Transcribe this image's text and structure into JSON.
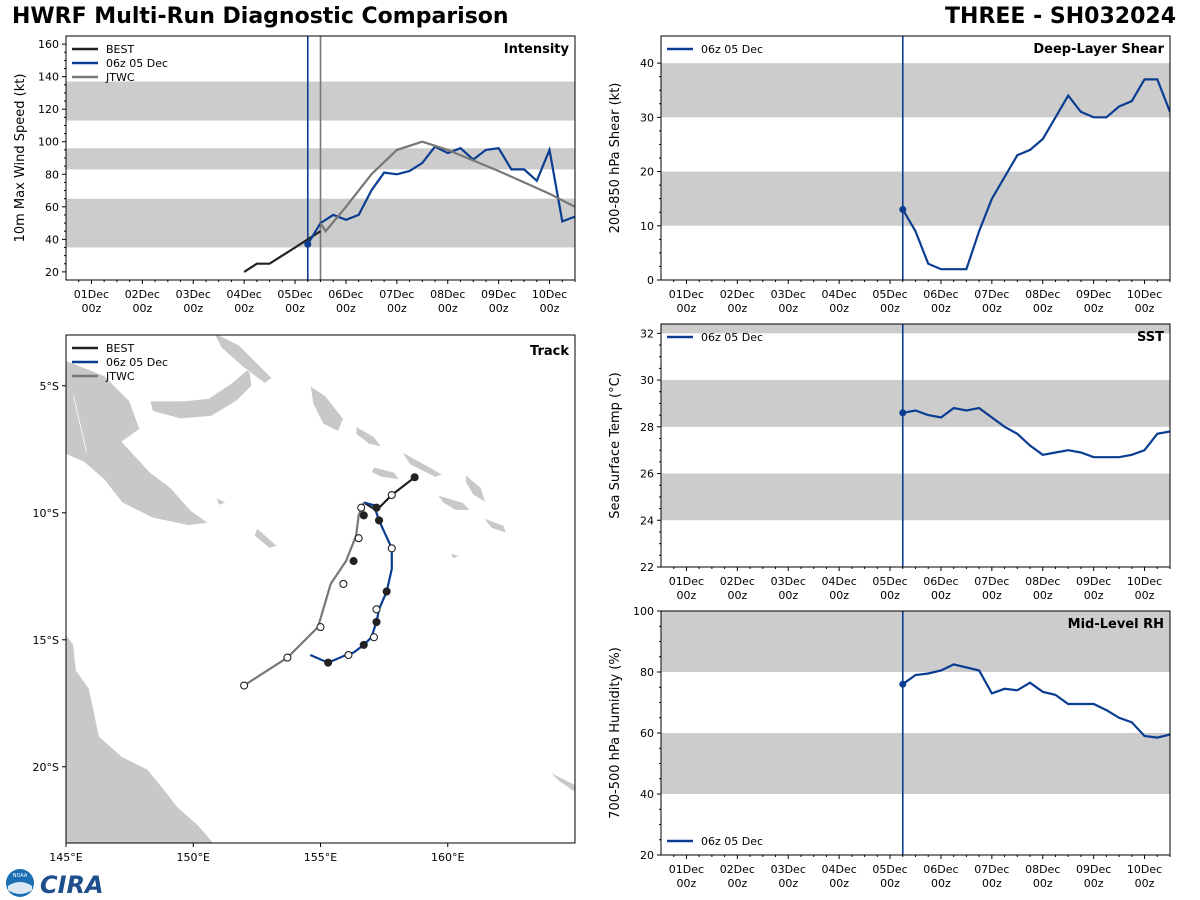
{
  "header": {
    "title_left": "HWRF Multi-Run Diagnostic Comparison",
    "title_right": "THREE - SH032024"
  },
  "colors": {
    "best": "#222222",
    "hwrf": "#0a3d91",
    "jtwc": "#777777",
    "band": "#cccccc"
  },
  "time_ticks": [
    "01Dec\n00z",
    "02Dec\n00z",
    "03Dec\n00z",
    "04Dec\n00z",
    "05Dec\n00z",
    "06Dec\n00z",
    "07Dec\n00z",
    "08Dec\n00z",
    "09Dec\n00z",
    "10Dec\n00z"
  ],
  "chart_data": [
    {
      "id": "intensity",
      "type": "line",
      "title": "Intensity",
      "ylabel": "10m Max Wind Speed (kt)",
      "xlim": [
        -0.5,
        9.5
      ],
      "ylim": [
        15,
        165
      ],
      "yticks": [
        20,
        40,
        60,
        80,
        100,
        120,
        140,
        160
      ],
      "bands": [
        [
          35,
          65
        ],
        [
          83,
          96
        ],
        [
          113,
          137
        ]
      ],
      "vlines": [
        {
          "x": 4.25,
          "series": "06z 05 Dec"
        },
        {
          "x": 4.5,
          "series": "JTWC"
        }
      ],
      "legend": [
        "BEST",
        "06z 05 Dec",
        "JTWC"
      ],
      "series": [
        {
          "name": "BEST",
          "x": [
            3,
            3.25,
            3.5,
            3.75,
            4,
            4.25,
            4.5
          ],
          "y": [
            20,
            25,
            25,
            30,
            35,
            40,
            45
          ]
        },
        {
          "name": "06z 05 Dec",
          "x": [
            4.25,
            4.5,
            4.75,
            5,
            5.25,
            5.5,
            5.75,
            6,
            6.25,
            6.5,
            6.75,
            7,
            7.25,
            7.5,
            7.75,
            8,
            8.25,
            8.5,
            8.75,
            9,
            9.25,
            9.5
          ],
          "y": [
            37,
            50,
            55,
            52,
            55,
            70,
            81,
            80,
            82,
            87,
            97,
            93,
            96,
            89,
            95,
            96,
            83,
            83,
            76,
            95,
            51,
            54
          ]
        },
        {
          "name": "JTWC",
          "x": [
            4.5,
            4.6,
            5,
            5.5,
            6,
            6.5,
            7,
            8,
            9,
            9.5
          ],
          "y": [
            50,
            45,
            60,
            80,
            95,
            100,
            95,
            82,
            68,
            60
          ]
        }
      ]
    },
    {
      "id": "shear",
      "type": "line",
      "title": "Deep-Layer Shear",
      "ylabel": "200-850 hPa Shear (kt)",
      "xlim": [
        -0.5,
        9.5
      ],
      "ylim": [
        0,
        45
      ],
      "yticks": [
        0,
        10,
        20,
        30,
        40
      ],
      "bands": [
        [
          10,
          20
        ],
        [
          30,
          40
        ]
      ],
      "vlines": [
        {
          "x": 4.25,
          "series": "06z 05 Dec"
        }
      ],
      "legend": [
        "06z 05 Dec"
      ],
      "series": [
        {
          "name": "06z 05 Dec",
          "x": [
            4.25,
            4.5,
            4.75,
            5,
            5.25,
            5.5,
            5.75,
            6,
            6.25,
            6.5,
            6.75,
            7,
            7.25,
            7.5,
            7.75,
            8,
            8.25,
            8.5,
            8.75,
            9,
            9.25,
            9.5
          ],
          "y": [
            13,
            9,
            3,
            2,
            2,
            2,
            9,
            15,
            19,
            23,
            24,
            26,
            30,
            34,
            31,
            30,
            30,
            32,
            33,
            37,
            37,
            31
          ]
        }
      ]
    },
    {
      "id": "sst",
      "type": "line",
      "title": "SST",
      "ylabel": "Sea Surface Temp (°C)",
      "xlim": [
        -0.5,
        9.5
      ],
      "ylim": [
        22,
        32.4
      ],
      "yticks": [
        22,
        24,
        26,
        28,
        30,
        32
      ],
      "bands": [
        [
          24,
          26
        ],
        [
          28,
          30
        ],
        [
          32,
          33
        ]
      ],
      "vlines": [
        {
          "x": 4.25,
          "series": "06z 05 Dec"
        }
      ],
      "legend": [
        "06z 05 Dec"
      ],
      "series": [
        {
          "name": "06z 05 Dec",
          "x": [
            4.25,
            4.5,
            4.75,
            5,
            5.25,
            5.5,
            5.75,
            6,
            6.25,
            6.5,
            6.75,
            7,
            7.25,
            7.5,
            7.75,
            8,
            8.25,
            8.5,
            8.75,
            9,
            9.25,
            9.5
          ],
          "y": [
            28.6,
            28.7,
            28.5,
            28.4,
            28.8,
            28.7,
            28.8,
            28.4,
            28.0,
            27.7,
            27.2,
            26.8,
            26.9,
            27.0,
            26.9,
            26.7,
            26.7,
            26.7,
            26.8,
            27.0,
            27.7,
            27.8
          ]
        }
      ]
    },
    {
      "id": "rh",
      "type": "line",
      "title": "Mid-Level RH",
      "ylabel": "700-500 hPa Humidity (%)",
      "xlim": [
        -0.5,
        9.5
      ],
      "ylim": [
        20,
        100
      ],
      "yticks": [
        20,
        40,
        60,
        80,
        100
      ],
      "bands": [
        [
          40,
          60
        ],
        [
          80,
          100
        ]
      ],
      "vlines": [
        {
          "x": 4.25,
          "series": "06z 05 Dec"
        }
      ],
      "legend": [
        "06z 05 Dec"
      ],
      "series": [
        {
          "name": "06z 05 Dec",
          "x": [
            4.25,
            4.5,
            4.75,
            5,
            5.25,
            5.5,
            5.75,
            6,
            6.25,
            6.5,
            6.75,
            7,
            7.25,
            7.5,
            7.75,
            8,
            8.25,
            8.5,
            8.75,
            9,
            9.25,
            9.5
          ],
          "y": [
            76,
            79,
            79.5,
            80.5,
            82.5,
            81.5,
            80.5,
            73,
            74.5,
            74,
            76.5,
            73.5,
            72.5,
            69.5,
            69.5,
            69.5,
            67.5,
            65,
            63.5,
            59,
            58.5,
            59.5
          ]
        }
      ]
    },
    {
      "id": "track",
      "type": "scatter",
      "title": "Track",
      "xlim": [
        145,
        165
      ],
      "ylim": [
        -23,
        -3
      ],
      "xticks": [
        145,
        150,
        155,
        160
      ],
      "xtick_labels": [
        "145°E",
        "150°E",
        "155°E",
        "160°E"
      ],
      "yticks": [
        -5,
        -10,
        -15,
        -20
      ],
      "ytick_labels": [
        "5°S",
        "10°S",
        "15°S",
        "20°S"
      ],
      "legend": [
        "BEST",
        "06z 05 Dec",
        "JTWC"
      ],
      "series": [
        {
          "name": "BEST",
          "lon": [
            158.7,
            157.8,
            157.2,
            156.7
          ],
          "lat": [
            -8.6,
            -9.3,
            -9.9,
            -9.6
          ]
        },
        {
          "name": "06z 05 Dec",
          "lon": [
            156.7,
            157.1,
            157.3,
            157.8,
            157.8,
            157.6,
            157.3,
            157.2,
            157.0,
            156.7,
            156.3,
            156.0,
            155.3,
            154.6
          ],
          "lat": [
            -9.6,
            -9.7,
            -10.3,
            -11.4,
            -12.2,
            -13.1,
            -13.8,
            -14.3,
            -14.9,
            -15.2,
            -15.5,
            -15.6,
            -15.9,
            -15.6
          ]
        },
        {
          "name": "JTWC",
          "lon": [
            156.7,
            156.5,
            156.4,
            156.0,
            155.4,
            154.9,
            153.7,
            152.0
          ],
          "lat": [
            -9.6,
            -10.1,
            -10.9,
            -11.9,
            -12.8,
            -14.5,
            -15.7,
            -16.8
          ]
        }
      ],
      "markers": {
        "BEST": [
          [
            158.7,
            -8.6,
            "filled"
          ],
          [
            157.8,
            -9.3,
            "open"
          ],
          [
            157.2,
            -9.8,
            "filled"
          ],
          [
            156.6,
            -9.8,
            "open"
          ]
        ],
        "06z 05 Dec": [
          [
            156.7,
            -10.1,
            "filled"
          ],
          [
            157.3,
            -10.3,
            "filled"
          ],
          [
            157.8,
            -11.4,
            "open"
          ],
          [
            157.6,
            -13.1,
            "filled"
          ],
          [
            157.2,
            -13.8,
            "open"
          ],
          [
            157.2,
            -14.3,
            "filled"
          ],
          [
            157.1,
            -14.9,
            "open"
          ],
          [
            156.7,
            -15.2,
            "filled"
          ],
          [
            156.1,
            -15.6,
            "open"
          ],
          [
            155.3,
            -15.9,
            "filled"
          ]
        ],
        "JTWC": [
          [
            156.5,
            -11.0,
            "open"
          ],
          [
            156.3,
            -11.9,
            "filled"
          ],
          [
            155.9,
            -12.8,
            "open"
          ],
          [
            155.0,
            -14.5,
            "open"
          ],
          [
            153.7,
            -15.7,
            "open"
          ],
          [
            152.0,
            -16.8,
            "open"
          ]
        ]
      }
    }
  ],
  "logos": {
    "noaa": "NOAA",
    "cira": "CIRA"
  }
}
